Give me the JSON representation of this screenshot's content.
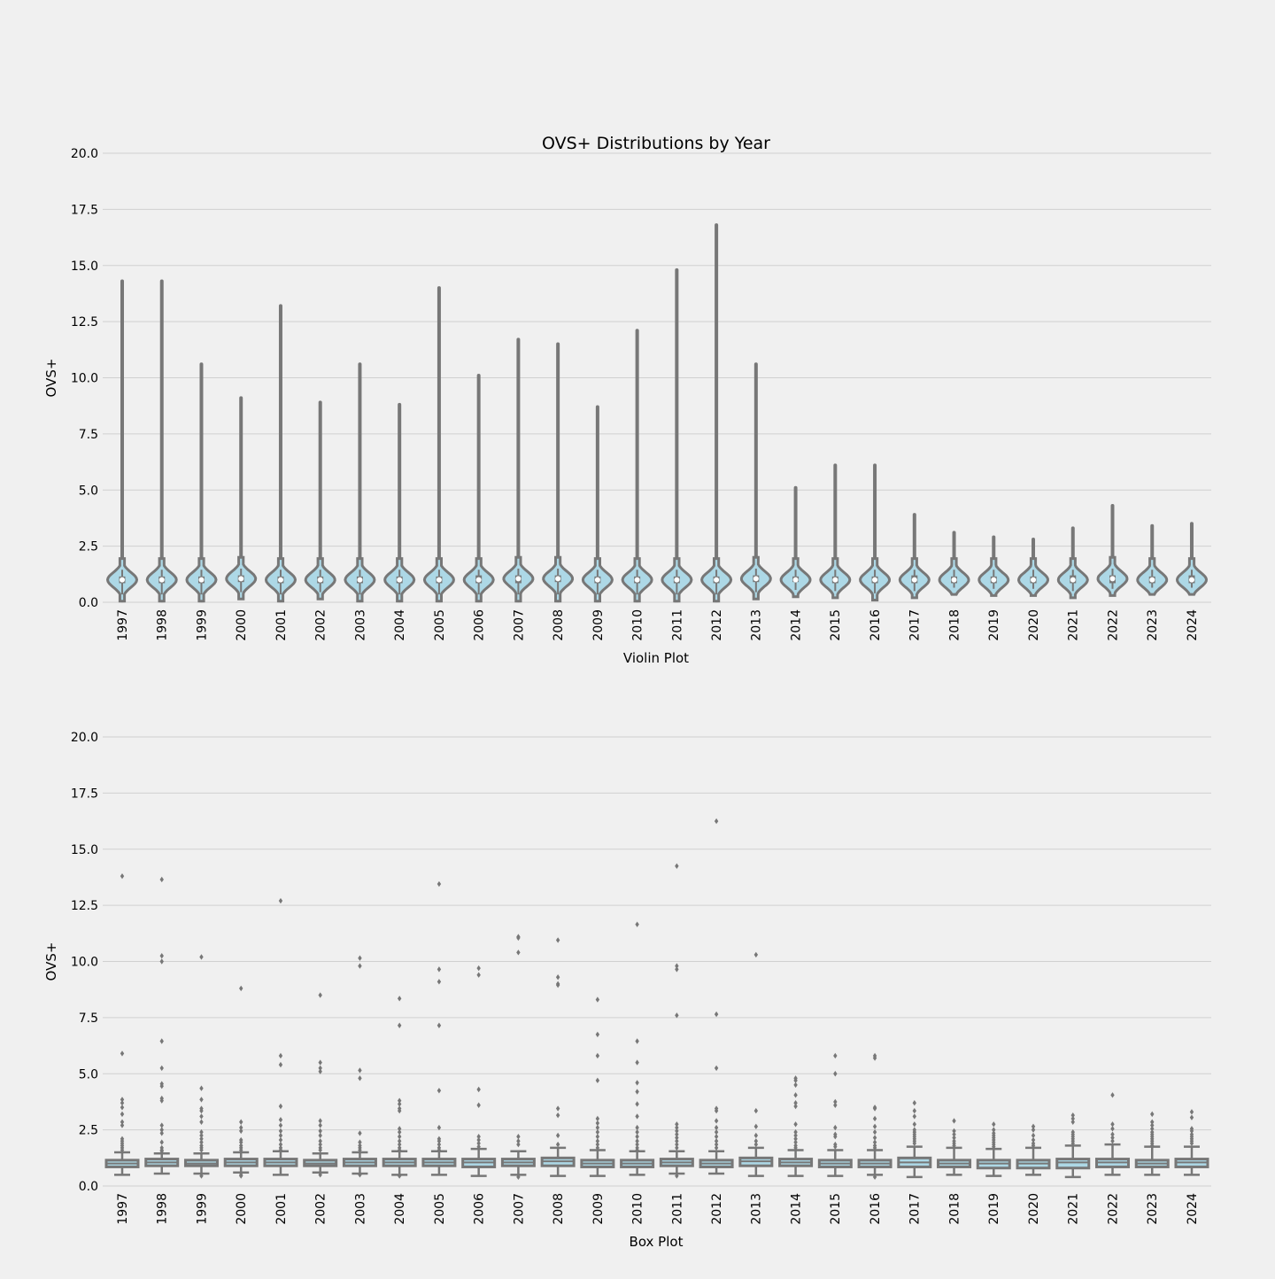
{
  "figure": {
    "title": "OVS+ Distributions by Year",
    "background_color": "#f0f0f0",
    "grid_color": "#d0d0d0",
    "fill_color": "#add8e6",
    "line_color": "#777777"
  },
  "chart_data": [
    {
      "type": "violin",
      "title": "OVS+ Distributions by Year",
      "xlabel": "Violin Plot",
      "ylabel": "OVS+",
      "ylim": [
        0,
        20
      ],
      "yticks": [
        "0.0",
        "2.5",
        "5.0",
        "7.5",
        "10.0",
        "12.5",
        "15.0",
        "17.5",
        "20.0"
      ],
      "grid": true,
      "categories": [
        "1997",
        "1998",
        "1999",
        "2000",
        "2001",
        "2002",
        "2003",
        "2004",
        "2005",
        "2006",
        "2007",
        "2008",
        "2009",
        "2010",
        "2011",
        "2012",
        "2013",
        "2014",
        "2015",
        "2016",
        "2017",
        "2018",
        "2019",
        "2020",
        "2021",
        "2022",
        "2023",
        "2024"
      ],
      "max": [
        14.3,
        14.3,
        10.6,
        9.1,
        13.2,
        8.9,
        10.6,
        8.8,
        14.0,
        10.1,
        11.7,
        11.5,
        8.7,
        12.1,
        14.8,
        16.8,
        10.6,
        5.1,
        6.1,
        6.1,
        3.9,
        3.1,
        2.9,
        2.8,
        3.3,
        4.3,
        3.4,
        3.5
      ],
      "min": [
        0.05,
        0.05,
        0.05,
        0.15,
        0.05,
        0.15,
        0.05,
        0.05,
        0.05,
        0.05,
        0.05,
        0.05,
        0.05,
        0.05,
        0.05,
        0.05,
        0.15,
        0.25,
        0.2,
        0.1,
        0.2,
        0.35,
        0.3,
        0.3,
        0.2,
        0.3,
        0.35,
        0.35
      ],
      "median": [
        1.0,
        1.0,
        1.0,
        1.05,
        1.0,
        1.0,
        1.0,
        1.0,
        1.0,
        1.0,
        1.05,
        1.05,
        1.0,
        1.0,
        1.0,
        1.0,
        1.05,
        1.0,
        1.0,
        1.0,
        1.0,
        1.0,
        1.0,
        1.0,
        1.0,
        1.05,
        1.0,
        1.0
      ],
      "q1": [
        0.85,
        0.85,
        0.85,
        0.9,
        0.85,
        0.85,
        0.85,
        0.85,
        0.85,
        0.85,
        0.85,
        0.9,
        0.85,
        0.85,
        0.85,
        0.85,
        0.9,
        0.9,
        0.85,
        0.85,
        0.85,
        0.85,
        0.85,
        0.85,
        0.85,
        0.85,
        0.85,
        0.85
      ],
      "q3": [
        1.15,
        1.15,
        1.15,
        1.2,
        1.15,
        1.15,
        1.15,
        1.15,
        1.15,
        1.2,
        1.2,
        1.2,
        1.15,
        1.15,
        1.15,
        1.15,
        1.2,
        1.15,
        1.15,
        1.15,
        1.2,
        1.15,
        1.15,
        1.15,
        1.2,
        1.2,
        1.15,
        1.2
      ]
    },
    {
      "type": "box",
      "xlabel": "Box Plot",
      "ylabel": "OVS+",
      "ylim": [
        0,
        20
      ],
      "yticks": [
        "0.0",
        "2.5",
        "5.0",
        "7.5",
        "10.0",
        "12.5",
        "15.0",
        "17.5",
        "20.0"
      ],
      "grid": true,
      "categories": [
        "1997",
        "1998",
        "1999",
        "2000",
        "2001",
        "2002",
        "2003",
        "2004",
        "2005",
        "2006",
        "2007",
        "2008",
        "2009",
        "2010",
        "2011",
        "2012",
        "2013",
        "2014",
        "2015",
        "2016",
        "2017",
        "2018",
        "2019",
        "2020",
        "2021",
        "2022",
        "2023",
        "2024"
      ],
      "whisker_low": [
        0.5,
        0.55,
        0.55,
        0.6,
        0.5,
        0.6,
        0.55,
        0.5,
        0.5,
        0.45,
        0.5,
        0.45,
        0.45,
        0.5,
        0.55,
        0.55,
        0.45,
        0.45,
        0.45,
        0.5,
        0.4,
        0.5,
        0.45,
        0.5,
        0.4,
        0.5,
        0.5,
        0.5
      ],
      "q1": [
        0.85,
        0.9,
        0.9,
        0.9,
        0.9,
        0.9,
        0.9,
        0.9,
        0.9,
        0.85,
        0.9,
        0.9,
        0.85,
        0.85,
        0.9,
        0.85,
        0.9,
        0.9,
        0.85,
        0.85,
        0.85,
        0.85,
        0.8,
        0.8,
        0.8,
        0.85,
        0.85,
        0.85
      ],
      "median": [
        1.0,
        1.05,
        1.0,
        1.05,
        1.05,
        1.0,
        1.05,
        1.05,
        1.05,
        1.05,
        1.05,
        1.1,
        1.0,
        1.0,
        1.05,
        1.0,
        1.1,
        1.05,
        1.0,
        1.0,
        1.05,
        1.0,
        1.0,
        1.0,
        1.05,
        1.05,
        1.0,
        1.05
      ],
      "q3": [
        1.15,
        1.2,
        1.15,
        1.2,
        1.2,
        1.15,
        1.2,
        1.2,
        1.2,
        1.2,
        1.2,
        1.25,
        1.15,
        1.15,
        1.2,
        1.15,
        1.25,
        1.2,
        1.15,
        1.15,
        1.25,
        1.15,
        1.15,
        1.15,
        1.2,
        1.2,
        1.15,
        1.2
      ],
      "whisker_high": [
        1.5,
        1.45,
        1.45,
        1.5,
        1.55,
        1.45,
        1.5,
        1.55,
        1.55,
        1.65,
        1.55,
        1.7,
        1.6,
        1.55,
        1.55,
        1.55,
        1.7,
        1.6,
        1.6,
        1.6,
        1.75,
        1.7,
        1.65,
        1.7,
        1.8,
        1.85,
        1.75,
        1.75
      ],
      "outliers": [
        [
          13.8,
          5.9,
          3.85,
          3.7,
          3.5,
          3.2,
          2.85,
          2.7,
          2.1,
          2.0,
          1.9,
          1.8,
          1.7,
          1.6
        ],
        [
          13.65,
          10.25,
          10.0,
          6.45,
          5.25,
          4.55,
          4.45,
          3.9,
          3.8,
          2.7,
          2.5,
          2.35,
          1.95,
          1.7,
          1.6,
          1.55
        ],
        [
          10.2,
          4.35,
          3.85,
          3.45,
          3.35,
          3.1,
          2.85,
          2.4,
          2.25,
          2.1,
          1.95,
          1.8,
          1.7,
          1.6,
          0.45
        ],
        [
          8.8,
          2.85,
          2.6,
          2.45,
          2.05,
          1.95,
          1.8,
          1.7,
          1.6,
          0.45,
          0.5
        ],
        [
          12.7,
          5.8,
          5.4,
          3.55,
          2.95,
          2.7,
          2.45,
          2.25,
          2.05,
          1.85,
          1.7,
          1.6
        ],
        [
          8.5,
          5.5,
          5.25,
          5.1,
          2.9,
          2.7,
          2.45,
          2.25,
          2.0,
          1.85,
          1.7,
          1.6,
          0.5
        ],
        [
          10.15,
          9.8,
          5.15,
          4.8,
          2.35,
          1.95,
          1.8,
          1.7,
          1.6,
          0.5
        ],
        [
          8.35,
          7.15,
          3.8,
          3.65,
          3.45,
          3.35,
          2.55,
          2.4,
          2.2,
          2.0,
          1.85,
          1.7,
          1.6,
          0.45
        ],
        [
          13.45,
          9.65,
          9.1,
          7.15,
          4.25,
          2.6,
          2.1,
          2.0,
          1.85,
          1.7,
          1.6
        ],
        [
          9.7,
          9.4,
          4.3,
          3.6,
          2.2,
          2.05,
          1.9,
          1.75
        ],
        [
          11.1,
          11.05,
          10.4,
          2.2,
          2.0,
          1.85,
          0.4
        ],
        [
          10.95,
          9.3,
          9.0,
          8.95,
          3.45,
          3.15,
          2.25,
          1.85
        ],
        [
          8.3,
          6.75,
          5.8,
          4.7,
          3.0,
          2.8,
          2.6,
          2.4,
          2.2,
          2.0,
          1.85,
          1.7
        ],
        [
          11.65,
          6.45,
          5.5,
          4.6,
          4.2,
          3.65,
          3.1,
          2.6,
          2.4,
          2.2,
          2.0,
          1.85,
          1.7,
          1.6
        ],
        [
          14.25,
          9.8,
          9.65,
          7.6,
          2.75,
          2.6,
          2.45,
          2.3,
          2.15,
          2.0,
          1.85,
          1.7,
          0.45
        ],
        [
          16.25,
          7.65,
          5.25,
          3.45,
          3.35,
          2.9,
          2.6,
          2.4,
          2.2,
          2.0,
          1.85,
          1.7
        ],
        [
          10.3,
          3.35,
          2.65,
          2.25,
          2.0,
          1.85
        ],
        [
          4.8,
          4.7,
          4.5,
          4.05,
          3.7,
          3.55,
          2.75,
          2.4,
          2.25,
          2.1,
          1.95,
          1.8,
          1.7
        ],
        [
          5.8,
          5.0,
          3.75,
          3.6,
          2.6,
          2.3,
          2.2,
          1.85,
          1.75
        ],
        [
          5.8,
          5.7,
          3.5,
          3.45,
          3.0,
          2.65,
          2.4,
          2.15,
          1.95,
          1.8,
          1.7,
          0.4
        ],
        [
          3.7,
          3.35,
          3.1,
          2.75,
          2.5,
          2.4,
          2.3,
          2.2,
          2.1,
          2.0,
          1.9
        ],
        [
          2.9,
          2.45,
          2.3,
          2.15,
          2.0,
          1.9,
          1.8
        ],
        [
          2.75,
          2.5,
          2.35,
          2.25,
          2.15,
          2.05,
          1.95,
          1.85,
          1.75
        ],
        [
          2.65,
          2.5,
          2.25,
          2.05,
          1.9,
          1.8
        ],
        [
          3.15,
          3.0,
          2.85,
          2.4,
          2.3,
          2.2,
          2.1,
          2.0,
          1.9
        ],
        [
          4.05,
          2.75,
          2.55,
          2.3,
          2.15,
          2.0
        ],
        [
          3.2,
          2.85,
          2.7,
          2.55,
          2.4,
          2.3,
          2.2,
          2.1,
          2.0,
          1.9,
          1.8
        ],
        [
          3.3,
          3.05,
          2.55,
          2.45,
          2.3,
          2.2,
          2.1,
          2.0,
          1.9
        ]
      ]
    }
  ]
}
